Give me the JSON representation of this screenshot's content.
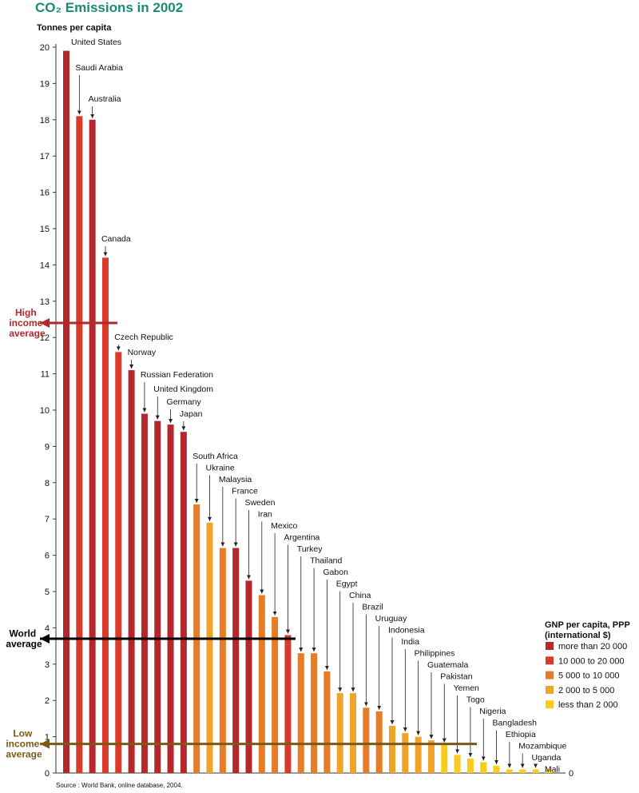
{
  "chart_data": {
    "type": "bar",
    "title": "CO₂ Emissions in 2002",
    "y_label": "Tonnes per capita",
    "source": "Source : World Bank, online database, 2004.",
    "categories": [
      "United States",
      "Saudi Arabia",
      "Australia",
      "Canada",
      "Czech Republic",
      "Norway",
      "Russian Federation",
      "United Kingdom",
      "Germany",
      "Japan",
      "South Africa",
      "Ukraine",
      "Malaysia",
      "France",
      "Sweden",
      "Iran",
      "Mexico",
      "Argentina",
      "Turkey",
      "Thailand",
      "Gabon",
      "Egypt",
      "China",
      "Brazil",
      "Uruguay",
      "Indonesia",
      "India",
      "Philippines",
      "Guatemala",
      "Pakistan",
      "Yemen",
      "Togo",
      "Nigeria",
      "Bangladesh",
      "Ethiopia",
      "Mozambique",
      "Uganda",
      "Mali"
    ],
    "series": [
      {
        "name": "more than 20 000",
        "color": "#b3282d",
        "values": [
          19.9,
          null,
          18.0,
          null,
          null,
          11.1,
          9.9,
          9.7,
          9.6,
          9.4,
          null,
          null,
          null,
          6.2,
          5.3,
          null,
          null,
          null,
          null,
          null,
          null,
          null,
          null,
          null,
          null,
          null,
          null,
          null,
          null,
          null,
          null,
          null,
          null,
          null,
          null,
          null,
          null,
          null
        ]
      },
      {
        "name": "10 000 to 20 000",
        "color": "#d93b2a",
        "values": [
          null,
          18.1,
          null,
          14.2,
          11.6,
          null,
          null,
          null,
          null,
          null,
          null,
          null,
          null,
          null,
          null,
          null,
          null,
          3.8,
          null,
          null,
          null,
          null,
          null,
          null,
          null,
          null,
          null,
          null,
          null,
          null,
          null,
          null,
          null,
          null,
          null,
          null,
          null,
          null
        ]
      },
      {
        "name": "5 000 to 10 000",
        "color": "#e87b26",
        "values": [
          null,
          null,
          null,
          null,
          null,
          null,
          null,
          null,
          null,
          null,
          7.4,
          null,
          6.2,
          null,
          null,
          4.9,
          4.3,
          null,
          3.3,
          3.3,
          2.8,
          null,
          null,
          1.8,
          1.7,
          null,
          null,
          null,
          null,
          null,
          null,
          null,
          null,
          null,
          null,
          null,
          null,
          null
        ]
      },
      {
        "name": "2 000 to 5 000",
        "color": "#f0a32a",
        "values": [
          null,
          null,
          null,
          null,
          null,
          null,
          null,
          null,
          null,
          null,
          null,
          6.9,
          null,
          null,
          null,
          null,
          null,
          null,
          null,
          null,
          null,
          2.2,
          2.2,
          null,
          null,
          1.3,
          1.1,
          1.0,
          0.9,
          null,
          null,
          null,
          null,
          null,
          null,
          null,
          null,
          null
        ]
      },
      {
        "name": "less than 2 000",
        "color": "#f8cc1e",
        "values": [
          null,
          null,
          null,
          null,
          null,
          null,
          null,
          null,
          null,
          null,
          null,
          null,
          null,
          null,
          null,
          null,
          null,
          null,
          null,
          null,
          null,
          null,
          null,
          null,
          null,
          null,
          null,
          null,
          null,
          0.8,
          0.5,
          0.4,
          0.3,
          0.2,
          0.1,
          0.1,
          0.1,
          0.1
        ]
      }
    ],
    "legend_title": [
      "GNP per capita, PPP",
      "(international $)"
    ],
    "averages": [
      {
        "label": "High income average",
        "value": 12.4,
        "color": "#b3282d"
      },
      {
        "label": "World average",
        "value": 3.7,
        "color": "#000000"
      },
      {
        "label": "Low income average",
        "value": 0.8,
        "color": "#7a5a17"
      }
    ],
    "ylim": [
      0,
      20
    ],
    "yticks": [
      0,
      1,
      2,
      3,
      4,
      5,
      6,
      7,
      8,
      9,
      10,
      11,
      12,
      13,
      14,
      15,
      16,
      17,
      18,
      19,
      20
    ]
  }
}
